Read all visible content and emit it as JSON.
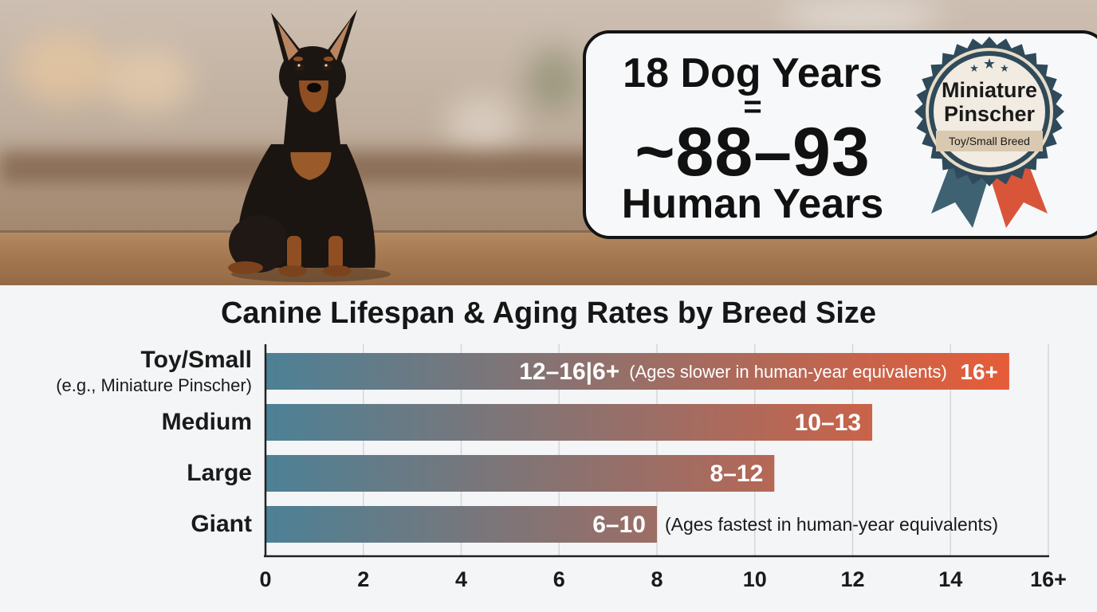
{
  "card": {
    "line1": "18 Dog Years",
    "equals": "=",
    "big": "~88–93",
    "line3": "Human Years"
  },
  "badge": {
    "title_line1": "Miniature",
    "title_line2": "Pinscher",
    "subtitle": "Toy/Small Breed",
    "colors": {
      "ring": "#2f4a5a",
      "inner": "#f1ebe1",
      "band": "#d9c9b0",
      "ribbon_left": "#3e6272",
      "ribbon_right": "#d9553a"
    }
  },
  "chart_data": {
    "type": "bar",
    "orientation": "horizontal",
    "title": "Canine Lifespan & Aging Rates by Breed Size",
    "categories": [
      "Toy/Small",
      "Medium",
      "Large",
      "Giant"
    ],
    "category_sublabels": [
      "(e.g., Miniature Pinscher)",
      "",
      "",
      ""
    ],
    "values": [
      15.2,
      12.4,
      10.4,
      8.0
    ],
    "data_labels": [
      "12–16|6+",
      "10–13",
      "8–12",
      "6–10"
    ],
    "extra_labels": [
      "16+",
      "",
      "",
      ""
    ],
    "annotations": [
      "(Ages slower in human-year equivalents)",
      "",
      "",
      "(Ages fastest in human-year equivalents)"
    ],
    "xlim": [
      0,
      16
    ],
    "x_ticks": [
      "0",
      "2",
      "4",
      "6",
      "8",
      "10",
      "12",
      "14",
      "16+"
    ],
    "grid": true,
    "colors": {
      "bar_start": "#4c8196",
      "bar_end": "#ee5a33"
    }
  }
}
